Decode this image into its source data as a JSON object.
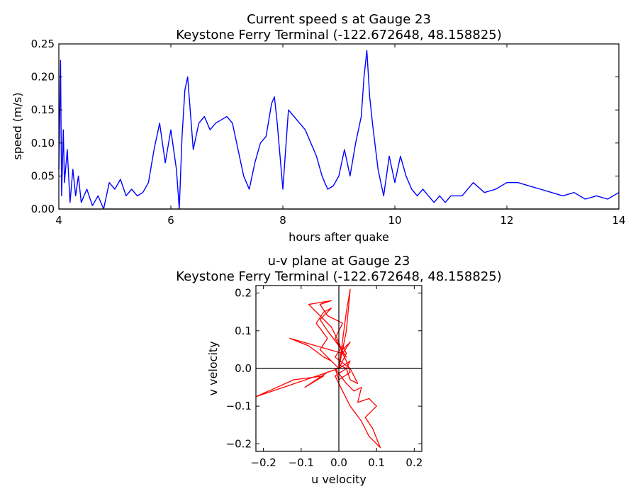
{
  "chart_data": [
    {
      "type": "line",
      "title": "Current speed s at Gauge 23",
      "subtitle": "Keystone Ferry Terminal  (-122.672648, 48.158825)",
      "xlabel": "hours after quake",
      "ylabel": "speed (m/s)",
      "xlim": [
        4,
        14
      ],
      "ylim": [
        0,
        0.25
      ],
      "xticks": [
        "4",
        "6",
        "8",
        "10",
        "12",
        "14"
      ],
      "yticks": [
        "0.00",
        "0.05",
        "0.10",
        "0.15",
        "0.20",
        "0.25"
      ],
      "grid": false,
      "series": [
        {
          "color": "#0000ff",
          "x": [
            4.0,
            4.03,
            4.05,
            4.08,
            4.1,
            4.15,
            4.2,
            4.25,
            4.3,
            4.35,
            4.4,
            4.5,
            4.6,
            4.7,
            4.8,
            4.9,
            5.0,
            5.1,
            5.2,
            5.3,
            5.4,
            5.5,
            5.6,
            5.7,
            5.8,
            5.9,
            6.0,
            6.1,
            6.15,
            6.2,
            6.25,
            6.3,
            6.4,
            6.5,
            6.6,
            6.7,
            6.8,
            6.9,
            7.0,
            7.1,
            7.2,
            7.3,
            7.4,
            7.5,
            7.6,
            7.7,
            7.8,
            7.85,
            7.9,
            8.0,
            8.1,
            8.2,
            8.3,
            8.4,
            8.5,
            8.6,
            8.7,
            8.8,
            8.9,
            9.0,
            9.1,
            9.2,
            9.3,
            9.4,
            9.45,
            9.5,
            9.55,
            9.6,
            9.7,
            9.8,
            9.9,
            10.0,
            10.1,
            10.2,
            10.3,
            10.4,
            10.5,
            10.6,
            10.7,
            10.8,
            10.9,
            11.0,
            11.2,
            11.4,
            11.6,
            11.8,
            12.0,
            12.2,
            12.4,
            12.6,
            12.8,
            13.0,
            13.2,
            13.4,
            13.6,
            13.8,
            14.0
          ],
          "y": [
            0.06,
            0.225,
            0.02,
            0.12,
            0.04,
            0.09,
            0.01,
            0.06,
            0.02,
            0.05,
            0.01,
            0.03,
            0.005,
            0.02,
            0.0,
            0.04,
            0.03,
            0.045,
            0.02,
            0.03,
            0.02,
            0.025,
            0.04,
            0.09,
            0.13,
            0.07,
            0.12,
            0.06,
            0.0,
            0.11,
            0.18,
            0.2,
            0.09,
            0.13,
            0.14,
            0.12,
            0.13,
            0.135,
            0.14,
            0.13,
            0.09,
            0.05,
            0.03,
            0.07,
            0.1,
            0.11,
            0.16,
            0.17,
            0.13,
            0.03,
            0.15,
            0.14,
            0.13,
            0.12,
            0.1,
            0.08,
            0.05,
            0.03,
            0.035,
            0.05,
            0.09,
            0.05,
            0.1,
            0.14,
            0.2,
            0.24,
            0.17,
            0.13,
            0.06,
            0.02,
            0.08,
            0.04,
            0.08,
            0.05,
            0.03,
            0.02,
            0.03,
            0.02,
            0.01,
            0.02,
            0.01,
            0.02,
            0.02,
            0.04,
            0.025,
            0.03,
            0.04,
            0.04,
            0.035,
            0.03,
            0.025,
            0.02,
            0.025,
            0.015,
            0.02,
            0.015,
            0.025
          ]
        }
      ]
    },
    {
      "type": "line",
      "title": "u-v plane at Gauge 23",
      "subtitle": "Keystone Ferry Terminal  (-122.672648, 48.158825)",
      "xlabel": "u velocity",
      "ylabel": "v velocity",
      "xlim": [
        -0.22,
        0.22
      ],
      "ylim": [
        -0.22,
        0.22
      ],
      "xticks": [
        "−0.2",
        "−0.1",
        "0.0",
        "0.1",
        "0.2"
      ],
      "yticks": [
        "−0.2",
        "−0.1",
        "0.0",
        "0.1",
        "0.2"
      ],
      "grid": false,
      "series": [
        {
          "color": "#ff0000",
          "u": [
            0.0,
            -0.02,
            -0.05,
            -0.03,
            -0.06,
            -0.04,
            -0.02,
            -0.05,
            -0.03,
            0.0,
            0.02,
            -0.01,
            0.01,
            -0.03,
            -0.05,
            -0.02,
            -0.08,
            -0.05,
            -0.02,
            0.0,
            0.01,
            0.02,
            0.03,
            0.0,
            -0.01,
            0.02,
            0.04,
            0.06,
            0.05,
            0.08,
            0.1,
            0.07,
            0.09,
            0.11,
            0.08,
            0.06,
            0.03,
            0.01,
            -0.01,
            0.02,
            0.03,
            0.0,
            -0.22,
            -0.12,
            -0.04,
            -0.09,
            -0.03,
            0.0,
            0.02,
            0.01,
            -0.01,
            0.03,
            0.05,
            0.03,
            0.02,
            0.0,
            0.01,
            0.03,
            0.01,
            -0.13,
            -0.08,
            -0.04,
            -0.02,
            0.0,
            0.02,
            0.03,
            0.02,
            0.0
          ],
          "v": [
            0.0,
            0.02,
            0.05,
            0.08,
            0.12,
            0.15,
            0.16,
            0.13,
            0.1,
            0.06,
            0.03,
            0.08,
            0.12,
            0.14,
            0.17,
            0.18,
            0.17,
            0.14,
            0.11,
            0.07,
            0.04,
            0.02,
            -0.01,
            -0.03,
            0.0,
            -0.04,
            -0.06,
            -0.05,
            -0.09,
            -0.08,
            -0.1,
            -0.13,
            -0.16,
            -0.21,
            -0.18,
            -0.14,
            -0.1,
            -0.06,
            -0.02,
            0.0,
            0.02,
            0.0,
            -0.075,
            -0.03,
            -0.02,
            -0.05,
            -0.01,
            0.0,
            0.04,
            0.06,
            0.03,
            0.0,
            -0.04,
            -0.03,
            0.0,
            0.01,
            0.05,
            0.07,
            0.04,
            0.08,
            0.06,
            0.03,
            0.02,
            0.0,
            0.1,
            0.21,
            0.15,
            0.0
          ]
        }
      ]
    }
  ]
}
